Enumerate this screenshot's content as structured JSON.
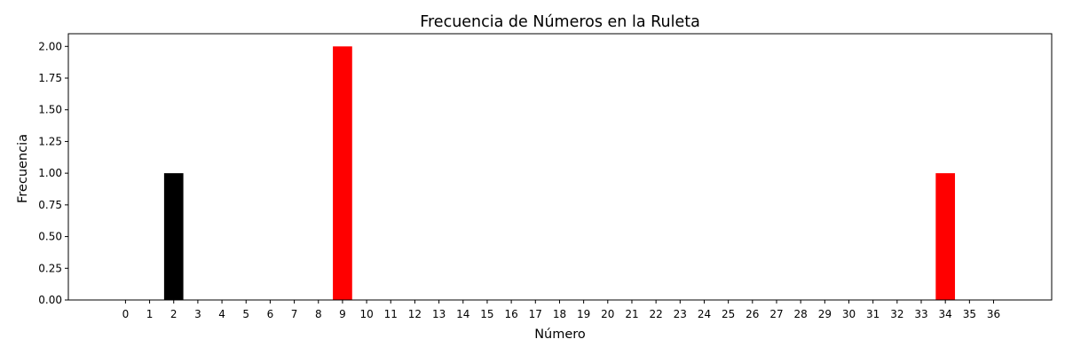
{
  "chart_data": {
    "type": "bar",
    "title": "Frecuencia de Números en la Ruleta",
    "xlabel": "Número",
    "ylabel": "Frecuencia",
    "categories": [
      "0",
      "1",
      "2",
      "3",
      "4",
      "5",
      "6",
      "7",
      "8",
      "9",
      "10",
      "11",
      "12",
      "13",
      "14",
      "15",
      "16",
      "17",
      "18",
      "19",
      "20",
      "21",
      "22",
      "23",
      "24",
      "25",
      "26",
      "27",
      "28",
      "29",
      "30",
      "31",
      "32",
      "33",
      "34",
      "35",
      "36"
    ],
    "values": [
      0,
      0,
      1,
      0,
      0,
      0,
      0,
      0,
      0,
      2,
      0,
      0,
      0,
      0,
      0,
      0,
      0,
      0,
      0,
      0,
      0,
      0,
      0,
      0,
      0,
      0,
      0,
      0,
      0,
      0,
      0,
      0,
      0,
      0,
      1,
      0,
      0
    ],
    "bar_colors": {
      "2": "#000000",
      "9": "#ff0000",
      "34": "#ff0000"
    },
    "ylim": [
      0,
      2.1
    ],
    "yticks": [
      "0.00",
      "0.25",
      "0.50",
      "0.75",
      "1.00",
      "1.25",
      "1.50",
      "1.75",
      "2.00"
    ],
    "grid": false,
    "legend": "none"
  }
}
